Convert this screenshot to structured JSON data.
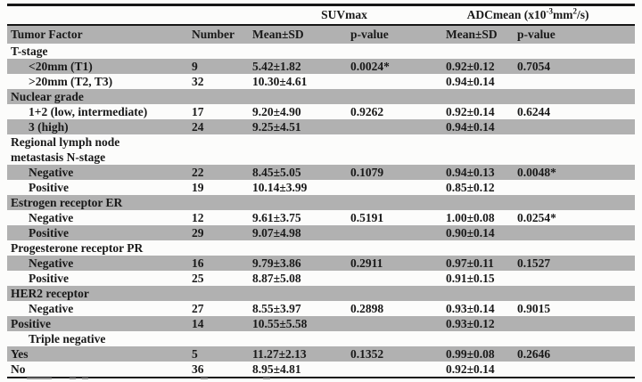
{
  "table": {
    "group_headers": {
      "suvmax": "SUVmax",
      "adc_pre": "ADCmean (x10",
      "adc_exp1": "-3",
      "adc_mid": "mm",
      "adc_exp2": "2",
      "adc_post": "/s)"
    },
    "columns": {
      "factor": "Tumor Factor",
      "number": "Number",
      "suv_mean": "Mean±SD",
      "suv_p": "p-value",
      "adc_mean": "Mean±SD",
      "adc_p": "p-value"
    },
    "rows": [
      {
        "label": "T-stage",
        "indent": false,
        "shaded": false,
        "number": "",
        "suv_mean": "",
        "suv_p": "",
        "adc_mean": "",
        "adc_p": ""
      },
      {
        "label": "<20mm (T1)",
        "indent": true,
        "shaded": true,
        "number": "9",
        "suv_mean": "5.42±1.82",
        "suv_p": "0.0024*",
        "adc_mean": "0.92±0.12",
        "adc_p": "0.7054"
      },
      {
        "label": ">20mm (T2, T3)",
        "indent": true,
        "shaded": false,
        "number": "32",
        "suv_mean": "10.30±4.61",
        "suv_p": "",
        "adc_mean": "0.94±0.14",
        "adc_p": ""
      },
      {
        "label": "Nuclear grade",
        "indent": false,
        "shaded": true,
        "number": "",
        "suv_mean": "",
        "suv_p": "",
        "adc_mean": "",
        "adc_p": ""
      },
      {
        "label": "1+2 (low, intermediate)",
        "indent": true,
        "shaded": false,
        "number": "17",
        "suv_mean": "9.20±4.90",
        "suv_p": "0.9262",
        "adc_mean": "0.92±0.14",
        "adc_p": "0.6244"
      },
      {
        "label": "3 (high)",
        "indent": true,
        "shaded": true,
        "number": "24",
        "suv_mean": "9.25±4.51",
        "suv_p": "",
        "adc_mean": "0.94±0.14",
        "adc_p": ""
      },
      {
        "label": "Regional lymph node\nmetastasis N-stage",
        "indent": false,
        "shaded": false,
        "number": "",
        "suv_mean": "",
        "suv_p": "",
        "adc_mean": "",
        "adc_p": ""
      },
      {
        "label": "Negative",
        "indent": true,
        "shaded": true,
        "number": "22",
        "suv_mean": "8.45±5.05",
        "suv_p": "0.1079",
        "adc_mean": "0.94±0.13",
        "adc_p": "0.0048*"
      },
      {
        "label": "Positive",
        "indent": true,
        "shaded": false,
        "number": "19",
        "suv_mean": "10.14±3.99",
        "suv_p": "",
        "adc_mean": "0.85±0.12",
        "adc_p": ""
      },
      {
        "label": "Estrogen receptor ER",
        "indent": false,
        "shaded": true,
        "number": "",
        "suv_mean": "",
        "suv_p": "",
        "adc_mean": "",
        "adc_p": ""
      },
      {
        "label": "Negative",
        "indent": true,
        "shaded": false,
        "number": "12",
        "suv_mean": "9.61±3.75",
        "suv_p": "0.5191",
        "adc_mean": "1.00±0.08",
        "adc_p": "0.0254*"
      },
      {
        "label": "Positive",
        "indent": true,
        "shaded": true,
        "number": "29",
        "suv_mean": "9.07±4.98",
        "suv_p": "",
        "adc_mean": "0.90±0.14",
        "adc_p": ""
      },
      {
        "label": "Progesterone receptor PR",
        "indent": false,
        "shaded": false,
        "number": "",
        "suv_mean": "",
        "suv_p": "",
        "adc_mean": "",
        "adc_p": ""
      },
      {
        "label": "Negative",
        "indent": true,
        "shaded": true,
        "number": "16",
        "suv_mean": "9.79±3.86",
        "suv_p": "0.2911",
        "adc_mean": "0.97±0.11",
        "adc_p": "0.1527"
      },
      {
        "label": "Positive",
        "indent": true,
        "shaded": false,
        "number": "25",
        "suv_mean": "8.87±5.08",
        "suv_p": "",
        "adc_mean": "0.91±0.15",
        "adc_p": ""
      },
      {
        "label": "HER2 receptor",
        "indent": false,
        "shaded": true,
        "number": "",
        "suv_mean": "",
        "suv_p": "",
        "adc_mean": "",
        "adc_p": ""
      },
      {
        "label": "Negative",
        "indent": true,
        "shaded": false,
        "number": "27",
        "suv_mean": "8.55±3.97",
        "suv_p": "0.2898",
        "adc_mean": "0.93±0.14",
        "adc_p": "0.9015"
      },
      {
        "label": "Positive",
        "indent": false,
        "shaded": true,
        "number": "14",
        "suv_mean": "10.55±5.58",
        "suv_p": "",
        "adc_mean": "0.93±0.12",
        "adc_p": ""
      },
      {
        "label": "Triple negative",
        "indent": true,
        "shaded": false,
        "number": "",
        "suv_mean": "",
        "suv_p": "",
        "adc_mean": "",
        "adc_p": ""
      },
      {
        "label": "Yes",
        "indent": false,
        "shaded": true,
        "number": "5",
        "suv_mean": "11.27±2.13",
        "suv_p": "0.1352",
        "adc_mean": "0.99±0.08",
        "adc_p": "0.2646"
      },
      {
        "label": "No",
        "indent": false,
        "shaded": false,
        "number": "36",
        "suv_mean": "8.95±4.81",
        "suv_p": "",
        "adc_mean": "0.92±0.14",
        "adc_p": ""
      }
    ]
  },
  "colors": {
    "shaded_row": "#b1b1b1",
    "border": "#161616",
    "text": "#191919",
    "background": "#fcfcfb"
  }
}
